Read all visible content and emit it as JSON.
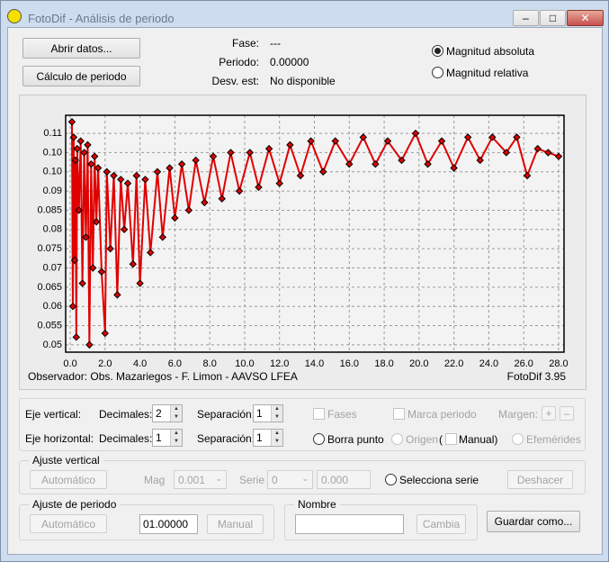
{
  "window": {
    "title": "FotoDif - Análisis de periodo"
  },
  "toolbar": {
    "open_button": "Abrir datos...",
    "period_button": "Cálculo de periodo"
  },
  "info": {
    "rows": [
      {
        "label": "Fase:",
        "value": "---"
      },
      {
        "label": "Periodo:",
        "value": "0.00000"
      },
      {
        "label": "Desv. est:",
        "value": "No disponible"
      }
    ]
  },
  "magnitude": {
    "options": [
      "Magnitud absoluta",
      "Magnitud relativa"
    ],
    "selected": 0
  },
  "chart_data": {
    "type": "line",
    "x": [
      0.1,
      0.15,
      0.2,
      0.25,
      0.3,
      0.35,
      0.4,
      0.5,
      0.6,
      0.7,
      0.8,
      0.9,
      1.0,
      1.1,
      1.2,
      1.3,
      1.4,
      1.5,
      1.6,
      1.8,
      2.0,
      2.1,
      2.3,
      2.5,
      2.7,
      2.9,
      3.1,
      3.3,
      3.6,
      3.8,
      4.0,
      4.3,
      4.6,
      5.0,
      5.3,
      5.7,
      6.0,
      6.4,
      6.8,
      7.2,
      7.7,
      8.2,
      8.7,
      9.2,
      9.7,
      10.3,
      10.8,
      11.4,
      12.0,
      12.6,
      13.2,
      13.8,
      14.5,
      15.2,
      16.0,
      16.8,
      17.5,
      18.2,
      19.0,
      19.8,
      20.5,
      21.3,
      22.0,
      22.8,
      23.5,
      24.2,
      25.0,
      25.6,
      26.2,
      26.8,
      27.4,
      28.0
    ],
    "series": [
      {
        "color": "#e00000",
        "values": [
          0.108,
          0.06,
          0.104,
          0.072,
          0.098,
          0.052,
          0.101,
          0.085,
          0.103,
          0.066,
          0.1,
          0.078,
          0.102,
          0.05,
          0.097,
          0.07,
          0.099,
          0.082,
          0.096,
          0.069,
          0.053,
          0.095,
          0.075,
          0.094,
          0.063,
          0.093,
          0.08,
          0.092,
          0.071,
          0.094,
          0.066,
          0.093,
          0.074,
          0.095,
          0.078,
          0.096,
          0.083,
          0.097,
          0.085,
          0.098,
          0.087,
          0.099,
          0.088,
          0.1,
          0.09,
          0.1,
          0.091,
          0.101,
          0.092,
          0.102,
          0.094,
          0.103,
          0.095,
          0.103,
          0.097,
          0.104,
          0.097,
          0.103,
          0.098,
          0.105,
          0.097,
          0.103,
          0.096,
          0.104,
          0.098,
          0.104,
          0.1,
          0.104,
          0.094,
          0.101,
          0.1,
          0.099
        ]
      }
    ],
    "marker_edge": "#000000",
    "xlim": [
      -0.26,
      28.31
    ],
    "ylim": [
      0.0481,
      0.1097
    ],
    "xticks": [
      {
        "value": 0,
        "label": "0.0"
      },
      {
        "value": 2,
        "label": "2.0"
      },
      {
        "value": 4,
        "label": "4.0"
      },
      {
        "value": 6,
        "label": "6.0"
      },
      {
        "value": 8,
        "label": "8.0"
      },
      {
        "value": 10,
        "label": "10.0"
      },
      {
        "value": 12,
        "label": "12.0"
      },
      {
        "value": 14,
        "label": "14.0"
      },
      {
        "value": 16,
        "label": "16.0"
      },
      {
        "value": 18,
        "label": "18.0"
      },
      {
        "value": 20,
        "label": "20.0"
      },
      {
        "value": 22,
        "label": "22.0"
      },
      {
        "value": 24,
        "label": "24.0"
      },
      {
        "value": 26,
        "label": "26.0"
      },
      {
        "value": 28,
        "label": "28.0"
      }
    ],
    "yticks": [
      0.05,
      0.055,
      0.06,
      0.065,
      0.07,
      0.075,
      0.08,
      0.085,
      0.09,
      {
        "value": 0.095,
        "label": "0.10"
      },
      {
        "value": 0.1,
        "label": "0.10"
      },
      {
        "value": 0.105,
        "label": "0.11"
      }
    ],
    "grid": true,
    "footer": [
      "Observador: Obs. Mazariegos - F. Limon - AAVSO LFEA",
      "FotoDif 3.95"
    ]
  },
  "axes_panel": {
    "vertical": {
      "label": "Eje vertical:",
      "decimals_label": "Decimales:",
      "decimals": 2,
      "separation_label": "Separación:",
      "separation": 1
    },
    "horizontal": {
      "label": "Eje horizontal:",
      "decimals_label": "Decimales:",
      "decimals": 1,
      "separation_label": "Separación:",
      "separation": 1
    },
    "phases": "Fases",
    "period_mark": "Marca periodo",
    "margin": "Margen:",
    "delete_point": "Borra punto",
    "origin": "Origen",
    "manual_open": "(",
    "manual": "Manual)",
    "ephemerides": "Efemérides"
  },
  "vertical_adjust": {
    "title": "Ajuste vertical",
    "auto": "Automático",
    "mag_label": "Mag",
    "mag": "0.001",
    "serie_label": "Serie",
    "serie": "0",
    "offset": "0.000",
    "select_series": "Selecciona serie",
    "undo": "Deshacer"
  },
  "period_adjust": {
    "title": "Ajuste de periodo",
    "auto": "Automático",
    "period": "01.00000",
    "manual": "Manual"
  },
  "name_box": {
    "title": "Nombre",
    "change": "Cambia"
  },
  "save_button": "Guardar como..."
}
